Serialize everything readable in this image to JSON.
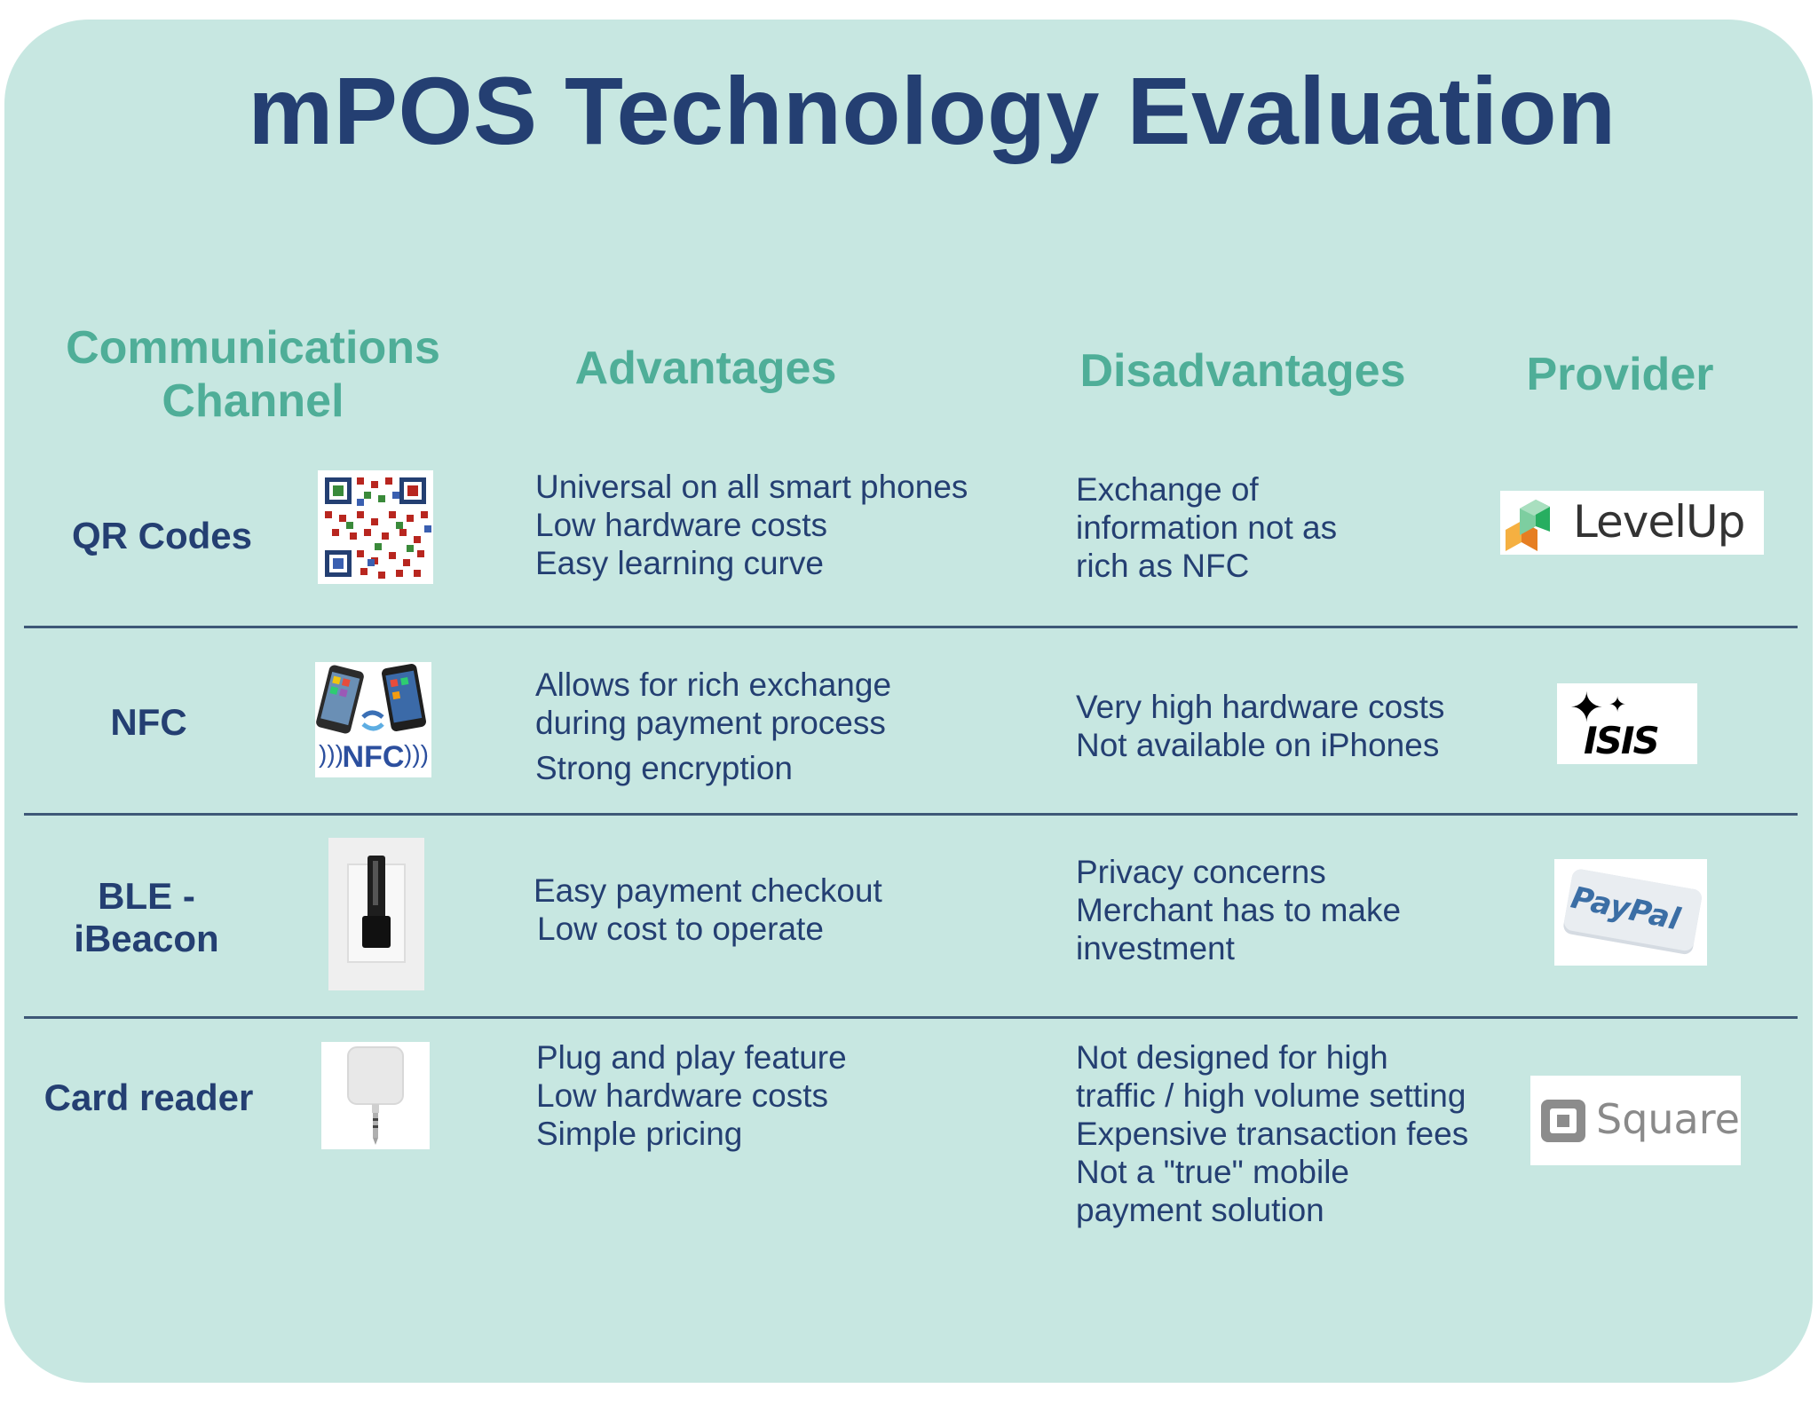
{
  "title": "mPOS Technology Evaluation",
  "headers": {
    "channel": [
      "Communications",
      "Channel"
    ],
    "advantages": "Advantages",
    "disadvantages": "Disadvantages",
    "provider": "Provider"
  },
  "rows": [
    {
      "channel": [
        "QR Codes"
      ],
      "image_icon": "qr-code-icon",
      "advantages": [
        "Universal on all smart phones",
        "Low hardware costs",
        "Easy learning curve"
      ],
      "disadvantages": [
        "Exchange of",
        "information not as",
        "rich as NFC"
      ],
      "provider": {
        "name": "LevelUp",
        "logo_text": "LevelUp"
      }
    },
    {
      "channel": [
        "NFC"
      ],
      "image_icon": "nfc-phones-icon",
      "image_text": "NFC",
      "advantages": [
        "Allows for rich exchange",
        "during payment process",
        "Strong encryption"
      ],
      "disadvantages": [
        "Very high hardware costs",
        "Not available on iPhones"
      ],
      "provider": {
        "name": "ISIS",
        "logo_text": "ISIS"
      }
    },
    {
      "channel": [
        "BLE -",
        "iBeacon"
      ],
      "image_icon": "ibeacon-device-icon",
      "advantages": [
        "Easy payment checkout",
        "Low cost to operate"
      ],
      "disadvantages": [
        "Privacy concerns",
        "Merchant has to make",
        "investment"
      ],
      "provider": {
        "name": "PayPal",
        "logo_text": "PayPal"
      }
    },
    {
      "channel": [
        "Card reader"
      ],
      "image_icon": "card-reader-icon",
      "advantages": [
        "Plug and play feature",
        "Low hardware costs",
        "Simple pricing"
      ],
      "disadvantages": [
        "Not designed for high",
        "traffic / high volume setting",
        "Expensive transaction fees",
        "Not a \"true\" mobile",
        "payment solution"
      ],
      "provider": {
        "name": "Square",
        "logo_text": "Square"
      }
    }
  ],
  "colors": {
    "background": "#c7e7e1",
    "title": "#243f72",
    "header": "#4fae98",
    "text": "#243f72",
    "separator": "#3e5877"
  }
}
